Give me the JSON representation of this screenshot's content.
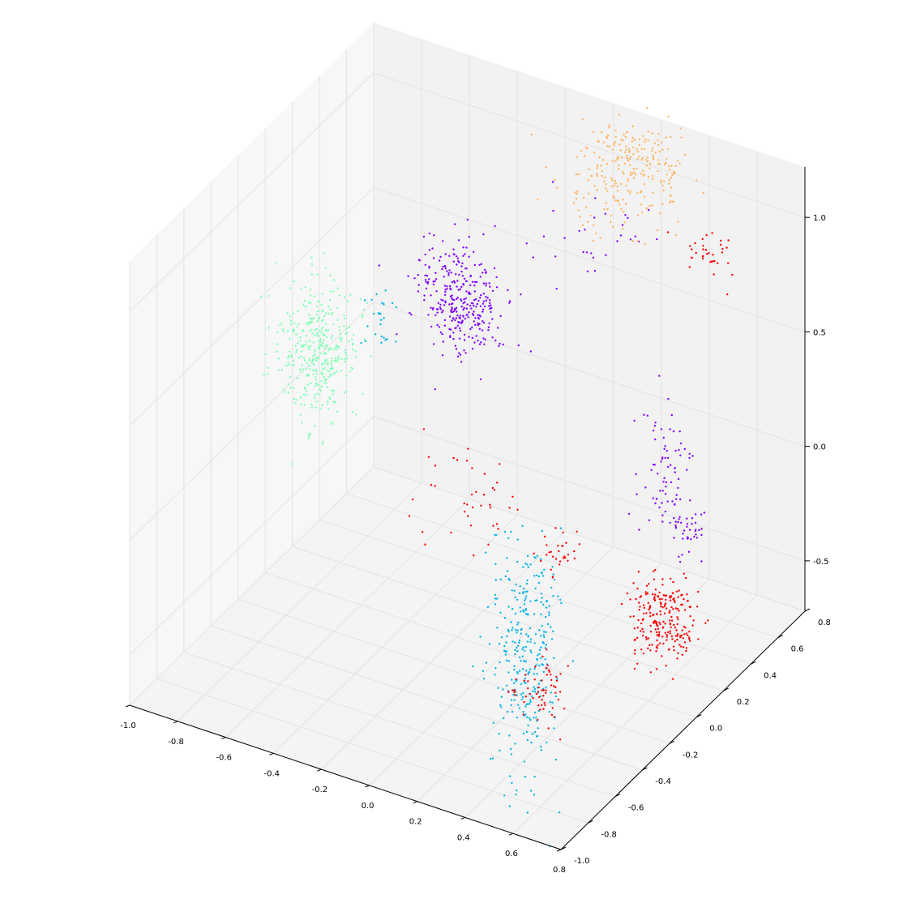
{
  "chart_data": {
    "type": "scatter",
    "projection": "3d",
    "title": "",
    "xlabel": "",
    "ylabel": "",
    "zlabel": "",
    "grid": true,
    "legend": "none",
    "pane_colors": {
      "left": "#f7f7f7",
      "back": "#f2f2f2",
      "floor": "#f4f4f4",
      "grid": "#e3e3e3"
    },
    "axes": {
      "x": {
        "range": [
          -1.0,
          0.8
        ],
        "ticks": [
          "-1.0",
          "-0.8",
          "-0.6",
          "-0.4",
          "-0.2",
          "0.0",
          "0.2",
          "0.4",
          "0.6",
          "0.8"
        ]
      },
      "y": {
        "range": [
          -1.0,
          0.8
        ],
        "ticks": [
          "-1.0",
          "-0.8",
          "-0.6",
          "-0.4",
          "-0.2",
          "0.0",
          "0.2",
          "0.4",
          "0.6",
          "0.8"
        ]
      },
      "z": {
        "range": [
          -0.5,
          1.0
        ],
        "ticks": [
          "-0.5",
          "0.0",
          "0.5",
          "1.0"
        ]
      }
    },
    "series": [
      {
        "color": "#8000ff",
        "clusters": [
          {
            "center": [
              -0.65,
              0.8,
              0.2
            ],
            "spread": [
              0.08,
              0.04,
              0.1
            ],
            "n": 150
          },
          {
            "center": [
              -0.6,
              0.75,
              0.12
            ],
            "spread": [
              0.09,
              0.05,
              0.1
            ],
            "n": 170
          },
          {
            "center": [
              0.35,
              0.55,
              -0.1
            ],
            "spread": [
              0.05,
              0.05,
              0.12
            ],
            "n": 70
          },
          {
            "center": [
              0.45,
              0.55,
              -0.35
            ],
            "spread": [
              0.05,
              0.05,
              0.08
            ],
            "n": 45
          },
          {
            "center": [
              -0.05,
              0.7,
              0.7
            ],
            "spread": [
              0.15,
              0.08,
              0.1
            ],
            "n": 30
          }
        ]
      },
      {
        "color": "#00b4e8",
        "clusters": [
          {
            "center": [
              0.2,
              -0.2,
              -0.55
            ],
            "spread": [
              0.06,
              0.06,
              0.25
            ],
            "n": 320
          },
          {
            "center": [
              -0.92,
              0.7,
              0.0
            ],
            "spread": [
              0.03,
              0.03,
              0.06
            ],
            "n": 25
          }
        ]
      },
      {
        "color": "#80ffb4",
        "clusters": [
          {
            "center": [
              -0.75,
              -0.05,
              0.35
            ],
            "spread": [
              0.07,
              0.07,
              0.15
            ],
            "n": 380
          }
        ]
      },
      {
        "color": "#ffb360",
        "clusters": [
          {
            "center": [
              0.05,
              0.9,
              0.95
            ],
            "spread": [
              0.1,
              0.06,
              0.06
            ],
            "n": 160
          },
          {
            "center": [
              0.0,
              0.8,
              0.8
            ],
            "spread": [
              0.12,
              0.08,
              0.08
            ],
            "n": 100
          }
        ]
      },
      {
        "color": "#ff0000",
        "clusters": [
          {
            "center": [
              0.55,
              0.2,
              -0.5
            ],
            "spread": [
              0.06,
              0.06,
              0.09
            ],
            "n": 230
          },
          {
            "center": [
              0.2,
              -0.1,
              -0.75
            ],
            "spread": [
              0.05,
              0.05,
              0.06
            ],
            "n": 60
          },
          {
            "center": [
              -0.25,
              0.2,
              -0.25
            ],
            "spread": [
              0.12,
              0.12,
              0.1
            ],
            "n": 40
          },
          {
            "center": [
              -0.05,
              0.5,
              -0.6
            ],
            "spread": [
              0.04,
              0.04,
              0.04
            ],
            "n": 30
          },
          {
            "center": [
              0.25,
              1.05,
              0.5
            ],
            "spread": [
              0.05,
              0.04,
              0.05
            ],
            "n": 35
          }
        ]
      }
    ]
  }
}
